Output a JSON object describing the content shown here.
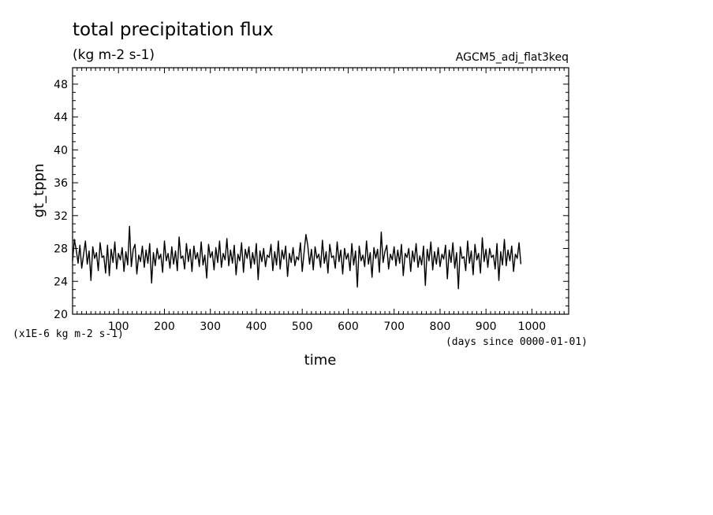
{
  "chart_data": {
    "type": "line",
    "title": "total precipitation flux",
    "units": "(kg m-2 s-1)",
    "experiment": "AGCM5_adj_flat3keq",
    "xlabel": "time",
    "xunits": "(days since 0000-01-01)",
    "ylabel": "gt_tppn",
    "yunits": "(x1E-6 kg m-2 s-1)",
    "xlim": [
      0,
      1080
    ],
    "ylim": [
      20,
      50
    ],
    "x_ticks": [
      100,
      200,
      300,
      400,
      500,
      600,
      700,
      800,
      900,
      1000
    ],
    "y_ticks": [
      20,
      24,
      28,
      32,
      36,
      40,
      44,
      48
    ],
    "grid": false,
    "legend": "none",
    "series": [
      {
        "color": "#000000",
        "x_start": 0,
        "x_step": 4,
        "values": [
          26.5,
          29.1,
          27.8,
          26.2,
          28.4,
          25.6,
          27.3,
          28.9,
          26.1,
          27.7,
          24.1,
          28.2,
          26.8,
          27.5,
          25.3,
          28.7,
          26.9,
          27.1,
          25.0,
          28.4,
          24.7,
          27.9,
          26.3,
          28.8,
          25.5,
          27.4,
          26.6,
          28.1,
          25.2,
          27.6,
          26.0,
          30.7,
          25.8,
          27.9,
          28.5,
          24.9,
          27.2,
          26.4,
          28.3,
          25.7,
          27.8,
          26.2,
          28.6,
          23.8,
          27.5,
          25.9,
          28.0,
          26.7,
          27.3,
          25.1,
          28.9,
          26.5,
          27.4,
          25.6,
          28.2,
          26.1,
          27.7,
          25.3,
          29.4,
          26.8,
          27.1,
          25.5,
          28.6,
          26.4,
          27.9,
          25.2,
          28.3,
          26.7,
          27.5,
          25.8,
          28.8,
          26.0,
          27.2,
          24.4,
          28.5,
          26.9,
          27.6,
          25.4,
          28.1,
          26.3,
          28.9,
          25.7,
          27.4,
          26.6,
          29.2,
          25.9,
          27.8,
          26.2,
          28.4,
          24.8,
          27.3,
          26.5,
          28.7,
          25.1,
          27.9,
          26.8,
          28.2,
          25.6,
          27.5,
          26.1,
          28.6,
          24.2,
          27.7,
          26.4,
          28.0,
          25.8,
          27.2,
          26.9,
          28.5,
          25.3,
          27.6,
          26.0,
          28.9,
          25.5,
          27.8,
          26.7,
          28.3,
          24.6,
          27.4,
          26.3,
          28.1,
          25.9,
          27.0,
          26.6,
          28.7,
          25.2,
          27.5,
          29.7,
          28.4,
          26.1,
          27.9,
          25.4,
          28.2,
          26.8,
          27.3,
          25.7,
          29.0,
          26.2,
          27.6,
          25.0,
          28.5,
          26.9,
          27.1,
          25.6,
          28.8,
          26.4,
          27.8,
          24.9,
          28.0,
          26.7,
          27.4,
          25.3,
          28.6,
          26.0,
          27.7,
          23.3,
          28.3,
          26.5,
          27.2,
          25.8,
          28.9,
          26.1,
          27.5,
          24.5,
          28.1,
          26.8,
          27.9,
          25.1,
          30.0,
          26.3,
          27.6,
          28.4,
          25.5,
          27.3,
          26.6,
          28.2,
          25.9,
          27.8,
          26.2,
          28.5,
          24.7,
          27.4,
          26.9,
          28.0,
          25.2,
          27.7,
          26.4,
          28.6,
          25.7,
          27.1,
          26.0,
          28.3,
          23.5,
          27.9,
          26.5,
          28.8,
          25.4,
          27.6,
          26.1,
          28.1,
          25.8,
          27.3,
          26.7,
          28.4,
          24.3,
          27.8,
          26.3,
          28.7,
          25.6,
          27.5,
          23.1,
          28.2,
          26.8,
          27.0,
          25.3,
          28.9,
          26.2,
          27.7,
          24.8,
          28.5,
          26.6,
          27.4,
          25.0,
          29.3,
          26.4,
          27.9,
          25.7,
          28.0,
          26.9,
          27.2,
          25.5,
          28.6,
          24.1,
          27.6,
          26.0,
          29.1,
          25.9,
          27.8,
          26.5,
          28.3,
          25.2,
          27.3,
          26.8,
          28.7,
          26.1
        ]
      }
    ]
  }
}
